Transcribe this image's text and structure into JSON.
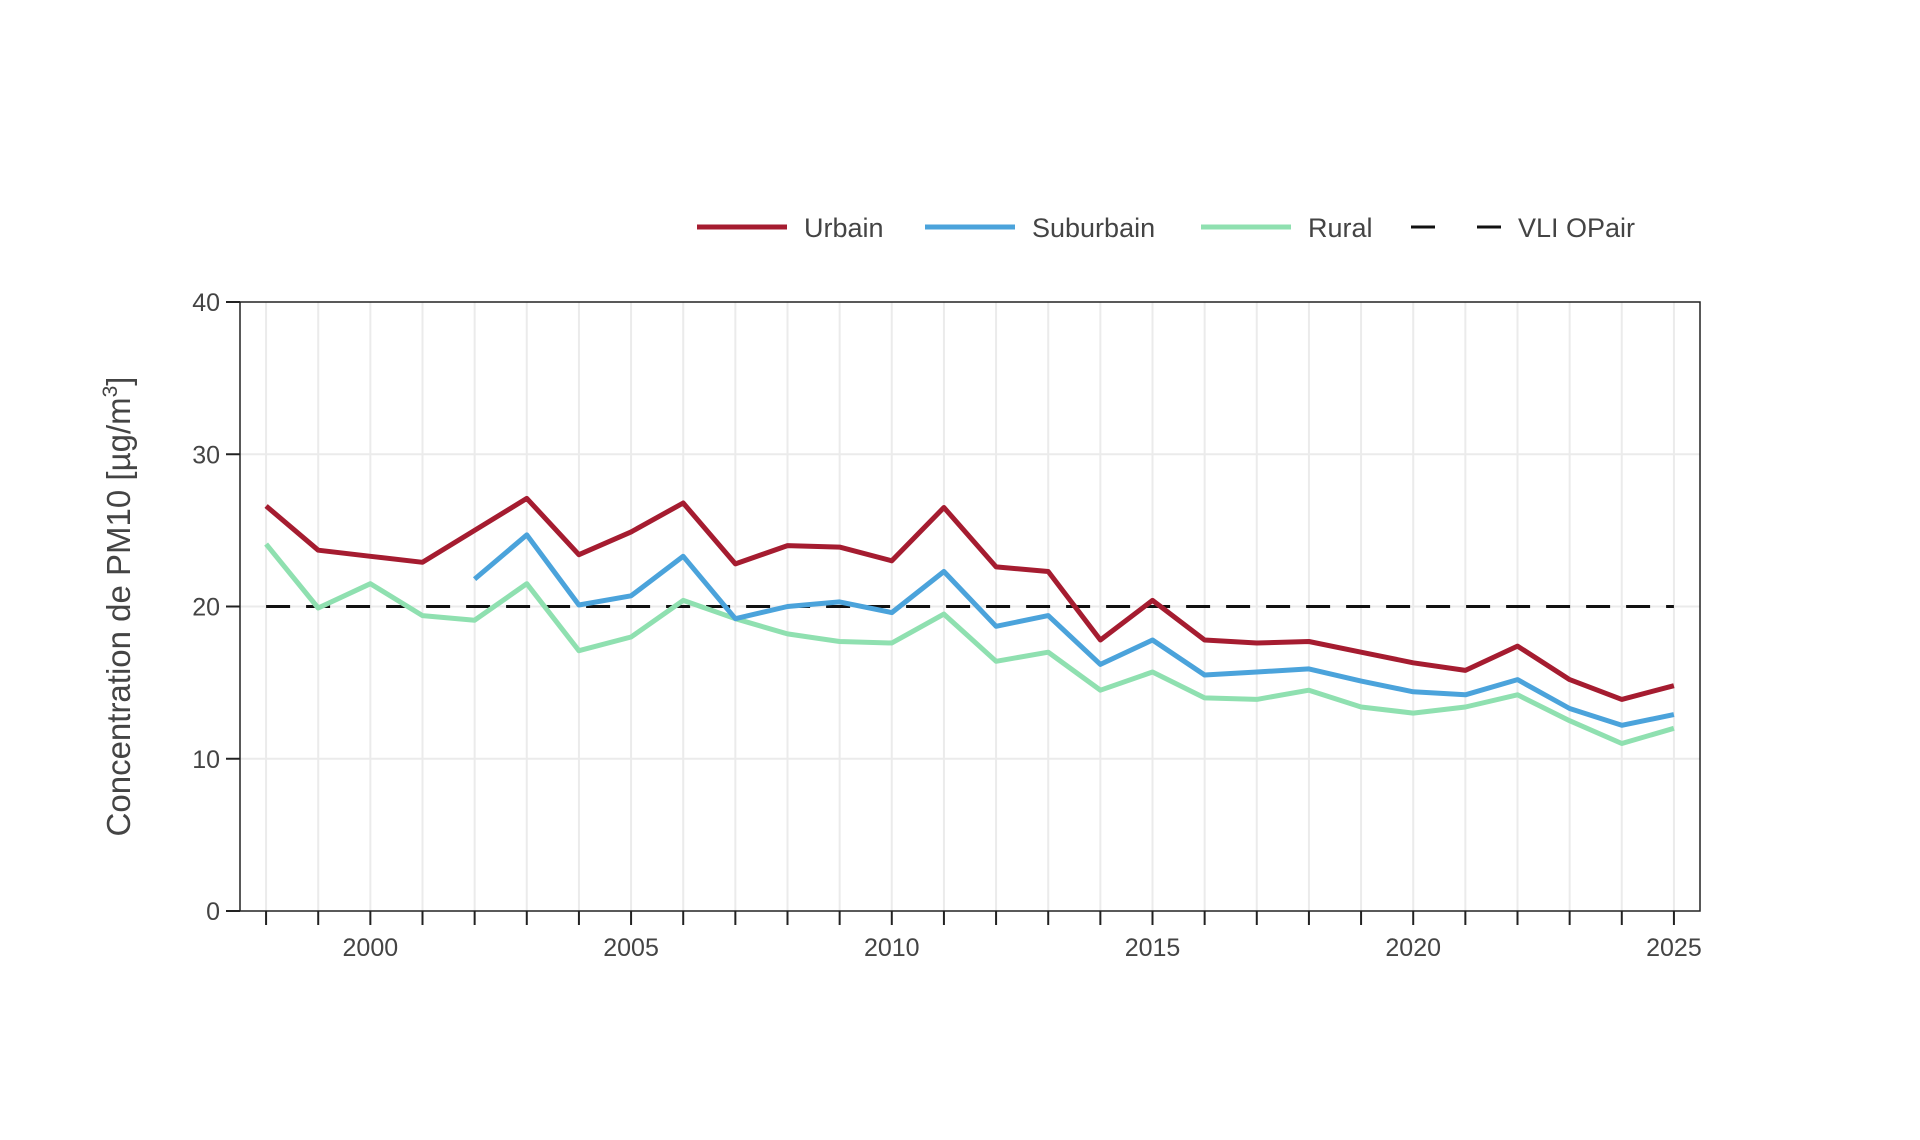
{
  "chart_data": {
    "type": "line",
    "title": "",
    "xlabel": "",
    "ylabel": "Concentration de PM10 [µg/m",
    "ylabel_sup": "3",
    "ylabel_end": "]",
    "xlim": [
      1997.5,
      2025.5
    ],
    "ylim": [
      0,
      40
    ],
    "x_ticks": [
      2000,
      2005,
      2010,
      2015,
      2020,
      2025
    ],
    "y_ticks": [
      0,
      10,
      20,
      30,
      40
    ],
    "minor_x_ticks": [
      1998,
      1999,
      2000,
      2001,
      2002,
      2003,
      2004,
      2005,
      2006,
      2007,
      2008,
      2009,
      2010,
      2011,
      2012,
      2013,
      2014,
      2015,
      2016,
      2017,
      2018,
      2019,
      2020,
      2021,
      2022,
      2023,
      2024,
      2025
    ],
    "grid": true,
    "legend_position": "top-right",
    "series": [
      {
        "name": "Urbain",
        "color": "#A51C30",
        "dash": "solid",
        "x": [
          1998,
          1999,
          2000,
          2001,
          2002,
          2003,
          2004,
          2005,
          2006,
          2007,
          2008,
          2009,
          2010,
          2011,
          2012,
          2013,
          2014,
          2015,
          2016,
          2017,
          2018,
          2019,
          2020,
          2021,
          2022,
          2023,
          2024,
          2025
        ],
        "y": [
          26.6,
          23.7,
          23.3,
          22.9,
          25.0,
          27.1,
          23.4,
          24.9,
          26.8,
          22.8,
          24.0,
          23.9,
          23.0,
          26.5,
          22.6,
          22.3,
          17.8,
          20.4,
          17.8,
          17.6,
          17.7,
          17.0,
          16.3,
          15.8,
          17.4,
          15.2,
          13.9,
          14.8
        ]
      },
      {
        "name": "Suburbain",
        "color": "#4BA3DB",
        "dash": "solid",
        "x": [
          2002,
          2003,
          2004,
          2005,
          2006,
          2007,
          2008,
          2009,
          2010,
          2011,
          2012,
          2013,
          2014,
          2015,
          2016,
          2017,
          2018,
          2019,
          2020,
          2021,
          2022,
          2023,
          2024,
          2025
        ],
        "y": [
          21.8,
          24.7,
          20.1,
          20.7,
          23.3,
          19.2,
          20.0,
          20.3,
          19.6,
          22.3,
          18.7,
          19.4,
          16.2,
          17.8,
          15.5,
          15.7,
          15.9,
          15.1,
          14.4,
          14.2,
          15.2,
          13.3,
          12.2,
          12.9
        ]
      },
      {
        "name": "Rural",
        "color": "#8FE0B0",
        "dash": "solid",
        "x": [
          1998,
          1999,
          2000,
          2001,
          2002,
          2003,
          2004,
          2005,
          2006,
          2007,
          2008,
          2009,
          2010,
          2011,
          2012,
          2013,
          2014,
          2015,
          2016,
          2017,
          2018,
          2019,
          2020,
          2021,
          2022,
          2023,
          2024,
          2025
        ],
        "y": [
          24.1,
          19.9,
          21.5,
          19.4,
          19.1,
          21.5,
          17.1,
          18.0,
          20.4,
          19.2,
          18.2,
          17.7,
          17.6,
          19.5,
          16.4,
          17.0,
          14.5,
          15.7,
          14.0,
          13.9,
          14.5,
          13.4,
          13.0,
          13.4,
          14.2,
          12.5,
          11.0,
          12.0
        ]
      },
      {
        "name": "VLI OPair",
        "color": "#111111",
        "dash": "dashed",
        "x": [
          1998,
          2025
        ],
        "y": [
          20,
          20
        ]
      }
    ]
  }
}
